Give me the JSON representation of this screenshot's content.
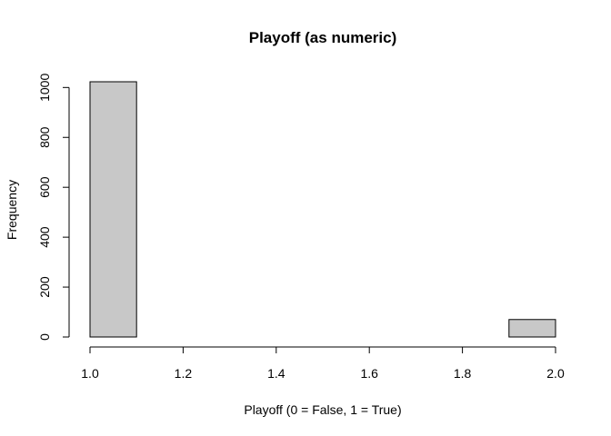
{
  "chart_data": {
    "type": "bar",
    "subtype": "histogram",
    "title": "Playoff (as numeric)",
    "xlabel": "Playoff (0 = False, 1 = True)",
    "ylabel": "Frequency",
    "bins": [
      {
        "start": 1.0,
        "end": 1.1,
        "count": 1023
      },
      {
        "start": 1.1,
        "end": 1.2,
        "count": 0
      },
      {
        "start": 1.2,
        "end": 1.3,
        "count": 0
      },
      {
        "start": 1.3,
        "end": 1.4,
        "count": 0
      },
      {
        "start": 1.4,
        "end": 1.5,
        "count": 0
      },
      {
        "start": 1.5,
        "end": 1.6,
        "count": 0
      },
      {
        "start": 1.6,
        "end": 1.7,
        "count": 0
      },
      {
        "start": 1.7,
        "end": 1.8,
        "count": 0
      },
      {
        "start": 1.8,
        "end": 1.9,
        "count": 0
      },
      {
        "start": 1.9,
        "end": 2.0,
        "count": 70
      }
    ],
    "xlim": [
      1.0,
      2.0
    ],
    "ylim": [
      0,
      1023
    ],
    "x_ticks": [
      "1.0",
      "1.2",
      "1.4",
      "1.6",
      "1.8",
      "2.0"
    ],
    "y_ticks": [
      "0",
      "200",
      "400",
      "600",
      "800",
      "1000"
    ],
    "grid": false,
    "legend": "none",
    "bar_fill": "#c8c8c8",
    "bar_stroke": "#000000"
  }
}
